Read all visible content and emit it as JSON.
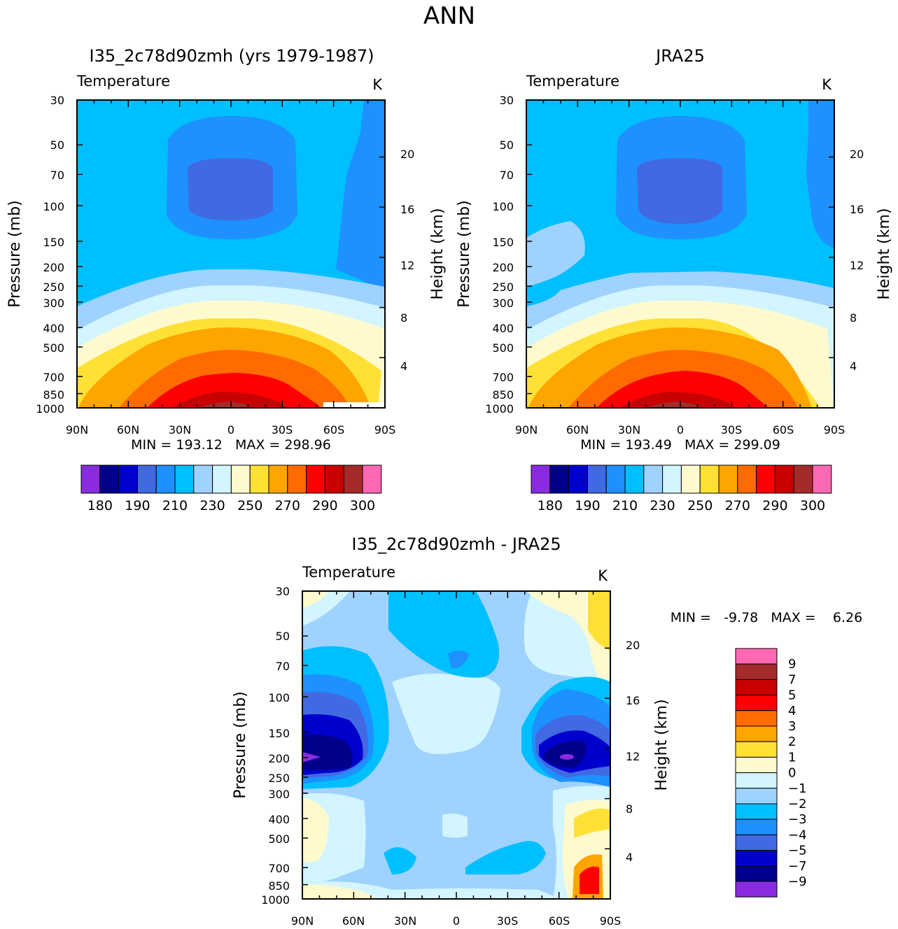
{
  "figure_title": "ANN",
  "colors": {
    "temperature": [
      "#8a2be2",
      "#00008b",
      "#0000cd",
      "#4169e1",
      "#1e90ff",
      "#00bfff",
      "#a0d2ff",
      "#d2f5ff",
      "#fffacd",
      "#ffe135",
      "#ffa500",
      "#ff6b00",
      "#ff0000",
      "#c80000",
      "#a52a2a",
      "#ff69b4"
    ],
    "difference": [
      "#ff69b4",
      "#a52a2a",
      "#c80000",
      "#ff0000",
      "#ff6b00",
      "#ffa500",
      "#ffe135",
      "#fffacd",
      "#d2f5ff",
      "#a0d2ff",
      "#00bfff",
      "#1e90ff",
      "#4169e1",
      "#0000cd",
      "#00008b",
      "#8a2be2"
    ]
  },
  "chart_data": [
    {
      "type": "heatmap",
      "panel": "model",
      "title": "I35_2c78d90zmh (yrs 1979-1987)",
      "subtitle_left": "Temperature",
      "subtitle_right": "K",
      "ylabel": "Pressure (mb)",
      "ylabel_right": "Height (km)",
      "x_ticklabels": [
        "90N",
        "60N",
        "30N",
        "0",
        "30S",
        "60S",
        "90S"
      ],
      "y_ticklabels": [
        "30",
        "50",
        "70",
        "100",
        "150",
        "200",
        "250",
        "300",
        "400",
        "500",
        "700",
        "850",
        "1000"
      ],
      "y2_ticklabels": [
        "20",
        "16",
        "12",
        "8",
        "4"
      ],
      "ylim": [
        1000,
        30
      ],
      "xlim": [
        "90N",
        "90S"
      ],
      "stats": "MIN = 193.12   MAX = 298.96",
      "levels": [
        "180",
        "190",
        "210",
        "230",
        "250",
        "270",
        "290",
        "300"
      ]
    },
    {
      "type": "heatmap",
      "panel": "reanalysis",
      "title": "JRA25",
      "subtitle_left": "Temperature",
      "subtitle_right": "K",
      "ylabel": "Pressure (mb)",
      "ylabel_right": "Height (km)",
      "x_ticklabels": [
        "90N",
        "60N",
        "30N",
        "0",
        "30S",
        "60S",
        "90S"
      ],
      "y_ticklabels": [
        "30",
        "50",
        "70",
        "100",
        "150",
        "200",
        "250",
        "300",
        "400",
        "500",
        "700",
        "850",
        "1000"
      ],
      "y2_ticklabels": [
        "20",
        "16",
        "12",
        "8",
        "4"
      ],
      "ylim": [
        1000,
        30
      ],
      "xlim": [
        "90N",
        "90S"
      ],
      "stats": "MIN = 193.49   MAX = 299.09",
      "levels": [
        "180",
        "190",
        "210",
        "230",
        "250",
        "270",
        "290",
        "300"
      ]
    },
    {
      "type": "heatmap",
      "panel": "difference",
      "title": "I35_2c78d90zmh - JRA25",
      "subtitle_left": "Temperature",
      "subtitle_right": "K",
      "ylabel": "Pressure (mb)",
      "ylabel_right": "Height (km)",
      "x_ticklabels": [
        "90N",
        "60N",
        "30N",
        "0",
        "30S",
        "60S",
        "90S"
      ],
      "y_ticklabels": [
        "30",
        "50",
        "70",
        "100",
        "150",
        "200",
        "250",
        "300",
        "400",
        "500",
        "700",
        "850",
        "1000"
      ],
      "y2_ticklabels": [
        "20",
        "16",
        "12",
        "8",
        "4"
      ],
      "ylim": [
        1000,
        30
      ],
      "xlim": [
        "90N",
        "90S"
      ],
      "stats": "MIN =   -9.78   MAX =    6.26",
      "levels": [
        "9",
        "7",
        "5",
        "4",
        "3",
        "2",
        "1",
        "0",
        "-1",
        "-2",
        "-3",
        "-4",
        "-5",
        "-7",
        "-9"
      ]
    }
  ]
}
